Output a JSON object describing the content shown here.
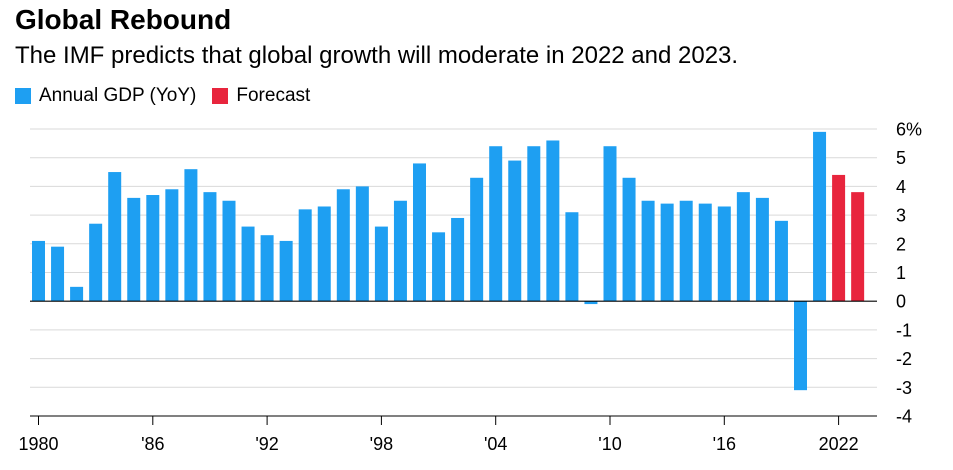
{
  "title": "Global Rebound",
  "subtitle": "The IMF predicts that global growth will moderate in 2022 and 2023.",
  "colors": {
    "actual": "#1e9ff2",
    "forecast": "#e8253d",
    "grid": "#d9d9d9",
    "axis": "#000000"
  },
  "chart_data": {
    "type": "bar",
    "title": "Global Rebound",
    "subtitle": "The IMF predicts that global growth will moderate in 2022 and 2023.",
    "xlabel": "",
    "ylabel": "",
    "ylim": [
      -4,
      6
    ],
    "y_unit": "%",
    "grid": true,
    "legend_position": "top-left",
    "legend": [
      "Annual GDP (YoY)",
      "Forecast"
    ],
    "x_tick_labels": [
      {
        "year": 1980,
        "label": "1980"
      },
      {
        "year": 1986,
        "label": "'86"
      },
      {
        "year": 1992,
        "label": "'92"
      },
      {
        "year": 1998,
        "label": "'98"
      },
      {
        "year": 2004,
        "label": "'04"
      },
      {
        "year": 2010,
        "label": "'10"
      },
      {
        "year": 2016,
        "label": "'16"
      },
      {
        "year": 2022,
        "label": "2022"
      }
    ],
    "y_tick_labels": [
      {
        "value": 6,
        "label": "6%"
      },
      {
        "value": 5,
        "label": "5"
      },
      {
        "value": 4,
        "label": "4"
      },
      {
        "value": 3,
        "label": "3"
      },
      {
        "value": 2,
        "label": "2"
      },
      {
        "value": 1,
        "label": "1"
      },
      {
        "value": 0,
        "label": "0"
      },
      {
        "value": -1,
        "label": "-1"
      },
      {
        "value": -2,
        "label": "-2"
      },
      {
        "value": -3,
        "label": "-3"
      },
      {
        "value": -4,
        "label": "-4"
      }
    ],
    "categories": [
      1980,
      1981,
      1982,
      1983,
      1984,
      1985,
      1986,
      1987,
      1988,
      1989,
      1990,
      1991,
      1992,
      1993,
      1994,
      1995,
      1996,
      1997,
      1998,
      1999,
      2000,
      2001,
      2002,
      2003,
      2004,
      2005,
      2006,
      2007,
      2008,
      2009,
      2010,
      2011,
      2012,
      2013,
      2014,
      2015,
      2016,
      2017,
      2018,
      2019,
      2020,
      2021,
      2022,
      2023
    ],
    "series": [
      {
        "name": "Annual GDP (YoY)",
        "color": "#1e9ff2",
        "values": [
          2.1,
          1.9,
          0.5,
          2.7,
          4.5,
          3.6,
          3.7,
          3.9,
          4.6,
          3.8,
          3.5,
          2.6,
          2.3,
          2.1,
          3.2,
          3.3,
          3.9,
          4.0,
          2.6,
          3.5,
          4.8,
          2.4,
          2.9,
          4.3,
          5.4,
          4.9,
          5.4,
          5.6,
          3.1,
          -0.1,
          5.4,
          4.3,
          3.5,
          3.4,
          3.5,
          3.4,
          3.3,
          3.8,
          3.6,
          2.8,
          -3.1,
          5.9,
          null,
          null
        ]
      },
      {
        "name": "Forecast",
        "color": "#e8253d",
        "values": [
          null,
          null,
          null,
          null,
          null,
          null,
          null,
          null,
          null,
          null,
          null,
          null,
          null,
          null,
          null,
          null,
          null,
          null,
          null,
          null,
          null,
          null,
          null,
          null,
          null,
          null,
          null,
          null,
          null,
          null,
          null,
          null,
          null,
          null,
          null,
          null,
          null,
          null,
          null,
          null,
          null,
          null,
          4.4,
          3.8
        ]
      }
    ]
  }
}
